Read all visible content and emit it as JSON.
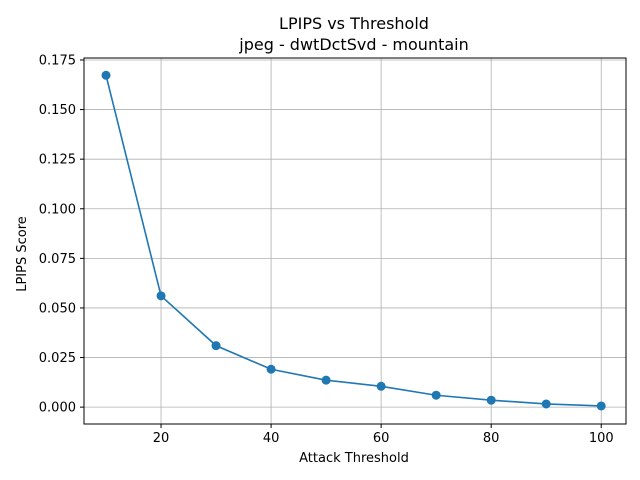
{
  "chart_data": {
    "type": "line",
    "title": "LPIPS vs Threshold",
    "subtitle": "jpeg - dwtDctSvd - mountain",
    "xlabel": "Attack Threshold",
    "ylabel": "LPIPS Score",
    "xlim": [
      6,
      104.5
    ],
    "ylim": [
      -0.0085,
      0.176
    ],
    "grid": true,
    "x_ticks": [
      20,
      40,
      60,
      80,
      100
    ],
    "x_tick_labels": [
      "20",
      "40",
      "60",
      "80",
      "100"
    ],
    "y_ticks": [
      0.0,
      0.025,
      0.05,
      0.075,
      0.1,
      0.125,
      0.15,
      0.175
    ],
    "y_tick_labels": [
      "0.000",
      "0.025",
      "0.050",
      "0.075",
      "0.100",
      "0.125",
      "0.150",
      "0.175"
    ],
    "series": [
      {
        "color": "#1f77b4",
        "x": [
          10,
          20,
          30,
          40,
          50,
          60,
          70,
          80,
          90,
          100
        ],
        "y": [
          0.1673,
          0.0561,
          0.031,
          0.0191,
          0.0136,
          0.0105,
          0.006,
          0.0035,
          0.0016,
          0.0006
        ]
      }
    ]
  }
}
